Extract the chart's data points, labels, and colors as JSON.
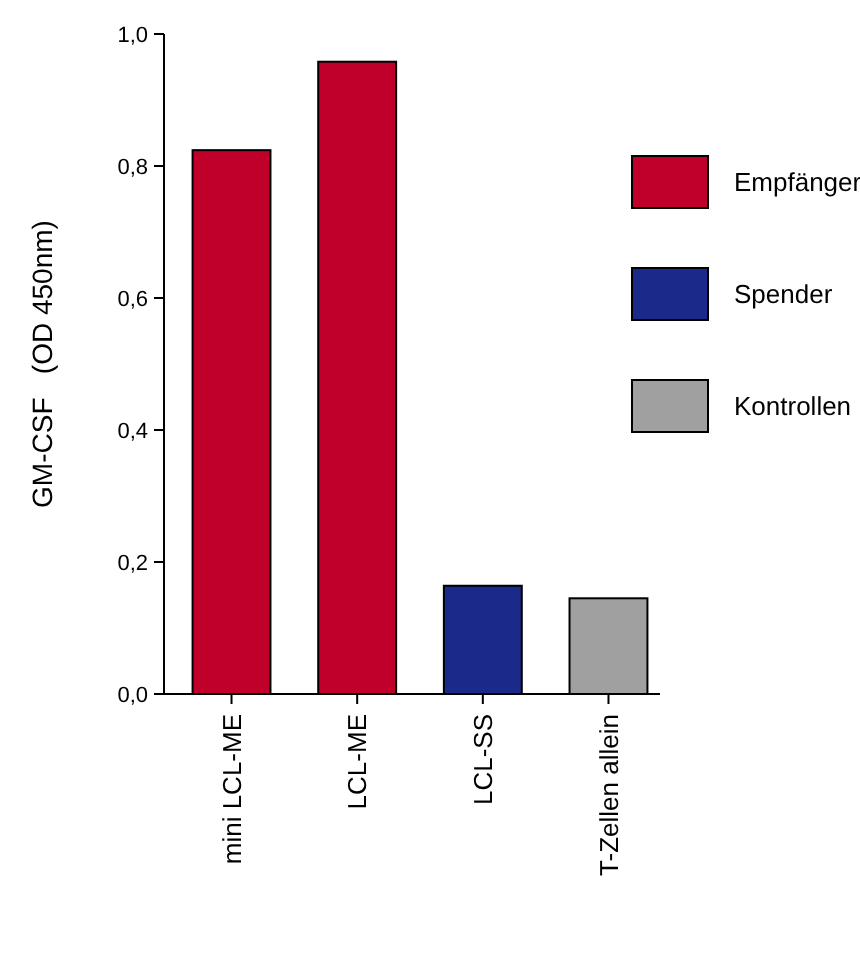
{
  "chart_data": {
    "type": "bar",
    "ylabel": "GM-CSF   (OD 450nm)",
    "categories": [
      "mini LCL-ME",
      "LCL-ME",
      "LCL-SS",
      "T-Zellen allein"
    ],
    "series": [
      {
        "name": "Empfänger",
        "color": "#c0002a",
        "values": [
          0.824,
          0.958,
          null,
          null
        ]
      },
      {
        "name": "Spender",
        "color": "#1b2a8a",
        "values": [
          null,
          null,
          0.164,
          null
        ]
      },
      {
        "name": "Kontrollen",
        "color": "#a0a0a0",
        "values": [
          null,
          null,
          null,
          0.145
        ]
      }
    ],
    "ylim": [
      0,
      1
    ],
    "yticks": [
      {
        "value": 0,
        "label": "0,0"
      },
      {
        "value": 0.2,
        "label": "0,2"
      },
      {
        "value": 0.4,
        "label": "0,4"
      },
      {
        "value": 0.6,
        "label": "0,6"
      },
      {
        "value": 0.8,
        "label": "0,8"
      },
      {
        "value": 1,
        "label": "1,0"
      }
    ],
    "grid": false,
    "legend": "right"
  }
}
